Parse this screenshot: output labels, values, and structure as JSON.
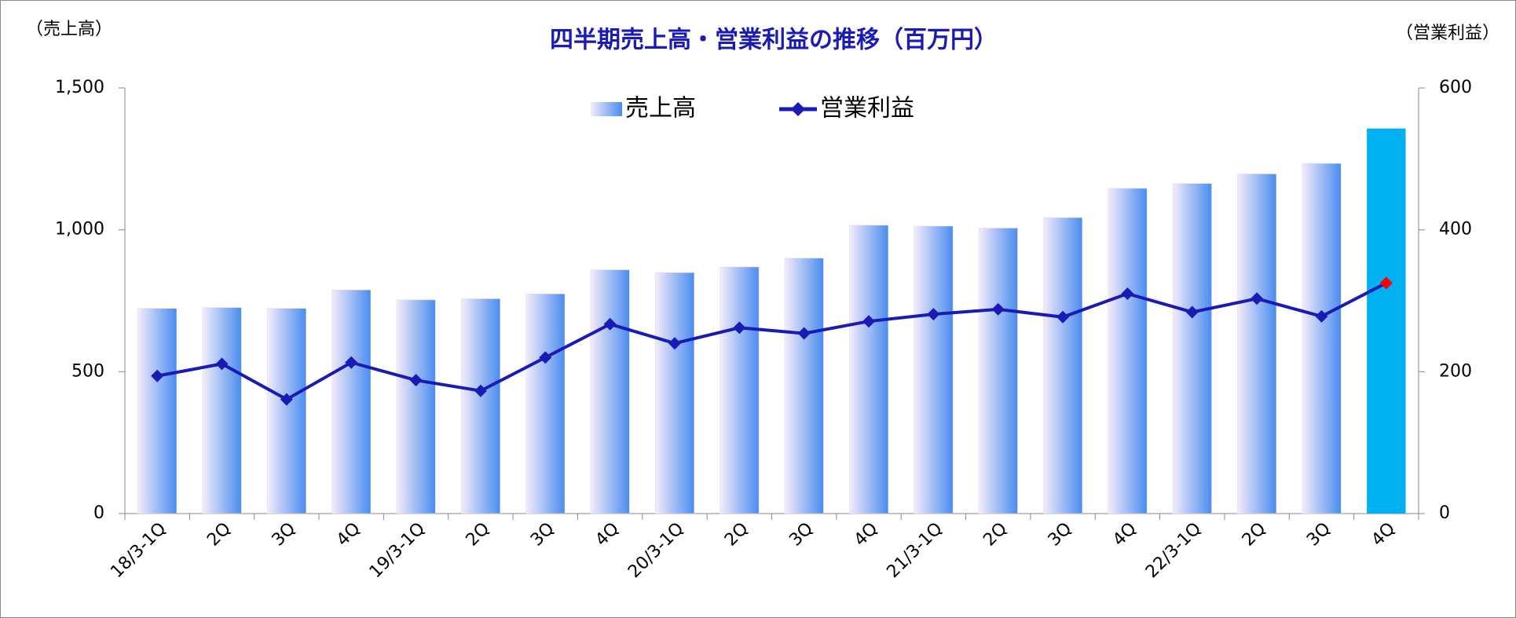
{
  "chart_data": {
    "type": "bar-line",
    "title": "四半期売上高・営業利益の推移（百万円）",
    "y_label": "（売上高）",
    "y2_label": "（営業利益）",
    "categories": [
      "18/3-1Q",
      "2Q",
      "3Q",
      "4Q",
      "19/3-1Q",
      "2Q",
      "3Q",
      "4Q",
      "20/3-1Q",
      "2Q",
      "3Q",
      "4Q",
      "21/3-1Q",
      "2Q",
      "3Q",
      "4Q",
      "22/3-1Q",
      "2Q",
      "3Q",
      "4Q"
    ],
    "series": [
      {
        "name": "売上高",
        "type": "bar",
        "color": "#4a8cf0",
        "colors": [
          "#4a8cf0",
          "#4a8cf0",
          "#4a8cf0",
          "#4a8cf0",
          "#4a8cf0",
          "#4a8cf0",
          "#4a8cf0",
          "#4a8cf0",
          "#4a8cf0",
          "#4a8cf0",
          "#4a8cf0",
          "#4a8cf0",
          "#4a8cf0",
          "#4a8cf0",
          "#4a8cf0",
          "#4a8cf0",
          "#4a8cf0",
          "#4a8cf0",
          "#4a8cf0",
          "#00b0f0"
        ],
        "values": [
          723,
          726,
          723,
          788,
          753,
          757,
          774,
          859,
          849,
          869,
          900,
          1016,
          1013,
          1006,
          1043,
          1146,
          1163,
          1197,
          1234,
          1357
        ]
      },
      {
        "name": "営業利益",
        "type": "line",
        "axis": "y2",
        "color": "#1a1ab4",
        "marker_colors": [
          "#1a1ab4",
          "#1a1ab4",
          "#1a1ab4",
          "#1a1ab4",
          "#1a1ab4",
          "#1a1ab4",
          "#1a1ab4",
          "#1a1ab4",
          "#1a1ab4",
          "#1a1ab4",
          "#1a1ab4",
          "#1a1ab4",
          "#1a1ab4",
          "#1a1ab4",
          "#1a1ab4",
          "#1a1ab4",
          "#1a1ab4",
          "#1a1ab4",
          "#1a1ab4",
          "#ff0000"
        ],
        "values": [
          194,
          211,
          161,
          213,
          188,
          173,
          220,
          267,
          240,
          262,
          254,
          271,
          281,
          288,
          277,
          310,
          284,
          303,
          278,
          325
        ]
      }
    ],
    "ylim": [
      0,
      1500
    ],
    "yticks": [
      0,
      500,
      {
        "value": 1000,
        "label": "1,000"
      },
      {
        "value": 1500,
        "label": "1,500"
      }
    ],
    "y2lim": [
      0,
      600
    ],
    "y2ticks": [
      0,
      200,
      400,
      600
    ],
    "grid": false
  }
}
